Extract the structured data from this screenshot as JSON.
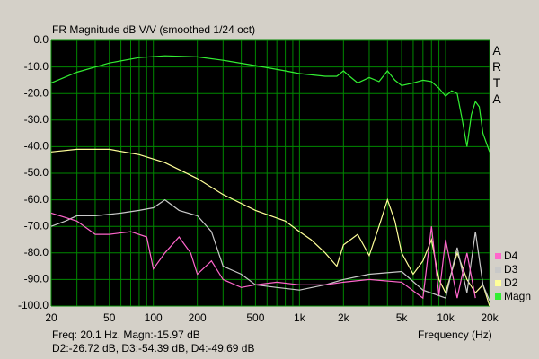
{
  "chart_data": {
    "type": "line",
    "title": "FR Magnitude dB V/V (smoothed 1/24 oct)",
    "watermark": "ARTA",
    "xlabel": "Frequency (Hz)",
    "status_lines": [
      "Freq: 20.1 Hz, Magn:-15.97 dB",
      "D2:-26.72 dB, D3:-54.39 dB, D4:-49.69 dB"
    ],
    "xscale": "log",
    "xlim": [
      20,
      20000
    ],
    "ylim": [
      -100,
      0
    ],
    "grid": true,
    "legend": "lower right",
    "xticks": [
      20,
      50,
      100,
      200,
      500,
      {
        "value": 1000,
        "label": "1k"
      },
      {
        "value": 2000,
        "label": "2k"
      },
      {
        "value": 5000,
        "label": "5k"
      },
      {
        "value": 10000,
        "label": "10k"
      },
      {
        "value": 20000,
        "label": "20k"
      }
    ],
    "x_minor_gridlines": [
      30,
      40,
      60,
      70,
      80,
      90,
      300,
      400,
      600,
      700,
      800,
      900,
      3000,
      4000,
      6000,
      7000,
      8000,
      9000
    ],
    "yticks": [
      {
        "value": 0,
        "label": "0.0"
      },
      {
        "value": -10,
        "label": "-10.0"
      },
      {
        "value": -20,
        "label": "-20.0"
      },
      {
        "value": -30,
        "label": "-30.0"
      },
      {
        "value": -40,
        "label": "-40.0"
      },
      {
        "value": -50,
        "label": "-50.0"
      },
      {
        "value": -60,
        "label": "-60.0"
      },
      {
        "value": -70,
        "label": "-70.0"
      },
      {
        "value": -80,
        "label": "-80.0"
      },
      {
        "value": -90,
        "label": "-90.0"
      },
      {
        "value": -100,
        "label": "-100.0"
      }
    ],
    "series": [
      {
        "name": "Magn",
        "color": "#33ee33",
        "x": [
          20,
          30,
          50,
          80,
          120,
          200,
          300,
          500,
          800,
          1000,
          1500,
          1800,
          2000,
          2200,
          2500,
          3000,
          3500,
          4000,
          4500,
          5000,
          6000,
          7000,
          8000,
          9000,
          10000,
          11000,
          12000,
          13000,
          14000,
          15000,
          16000,
          17000,
          18000,
          20000
        ],
        "values": [
          -16,
          -12,
          -8.5,
          -6.5,
          -5.8,
          -6.2,
          -7.5,
          -9.5,
          -11.5,
          -12.5,
          -13.5,
          -13.5,
          -11.5,
          -13.5,
          -16,
          -14,
          -15.5,
          -11.5,
          -15,
          -17,
          -16,
          -15,
          -15.5,
          -18,
          -21,
          -19,
          -20,
          -30,
          -40,
          -28,
          -23,
          -25,
          -35,
          -42
        ]
      },
      {
        "name": "D2",
        "color": "#ffff99",
        "x": [
          20,
          30,
          50,
          80,
          120,
          200,
          300,
          500,
          800,
          1000,
          1200,
          1500,
          1800,
          2000,
          2500,
          3000,
          3500,
          4000,
          4500,
          5000,
          6000,
          7000,
          8000,
          9000,
          10000,
          12000,
          14000,
          16000,
          18000,
          20000
        ],
        "values": [
          -42,
          -41,
          -41,
          -43,
          -46,
          -52,
          -58,
          -64,
          -68,
          -72,
          -75,
          -80,
          -85,
          -77,
          -73,
          -81,
          -70,
          -60,
          -68,
          -80,
          -88,
          -83,
          -75,
          -90,
          -95,
          -80,
          -90,
          -95,
          -92,
          -100
        ]
      },
      {
        "name": "D3",
        "color": "#c8c8c8",
        "x": [
          20,
          25,
          30,
          40,
          60,
          80,
          100,
          120,
          150,
          200,
          250,
          300,
          400,
          500,
          700,
          1000,
          1500,
          2000,
          3000,
          5000,
          7000,
          10000,
          12000,
          14000,
          16000,
          18000,
          20000
        ],
        "values": [
          -70,
          -68,
          -66,
          -66,
          -65,
          -64,
          -63,
          -60,
          -64,
          -66,
          -72,
          -85,
          -88,
          -92,
          -93,
          -94,
          -92,
          -90,
          -88,
          -87,
          -94,
          -97,
          -78,
          -95,
          -72,
          -92,
          -98
        ]
      },
      {
        "name": "D4",
        "color": "#ff66cc",
        "x": [
          20,
          30,
          40,
          50,
          70,
          90,
          100,
          120,
          150,
          180,
          200,
          250,
          300,
          400,
          500,
          700,
          1000,
          1500,
          2000,
          3000,
          5000,
          7000,
          8000,
          9000,
          10000,
          12000,
          14000,
          16000
        ],
        "values": [
          -65,
          -68,
          -73,
          -73,
          -72,
          -74,
          -86,
          -80,
          -74,
          -80,
          -88,
          -83,
          -90,
          -93,
          -92,
          -91,
          -92,
          -92,
          -91,
          -90,
          -91,
          -97,
          -70,
          -96,
          -75,
          -97,
          -80,
          -97
        ]
      }
    ]
  }
}
